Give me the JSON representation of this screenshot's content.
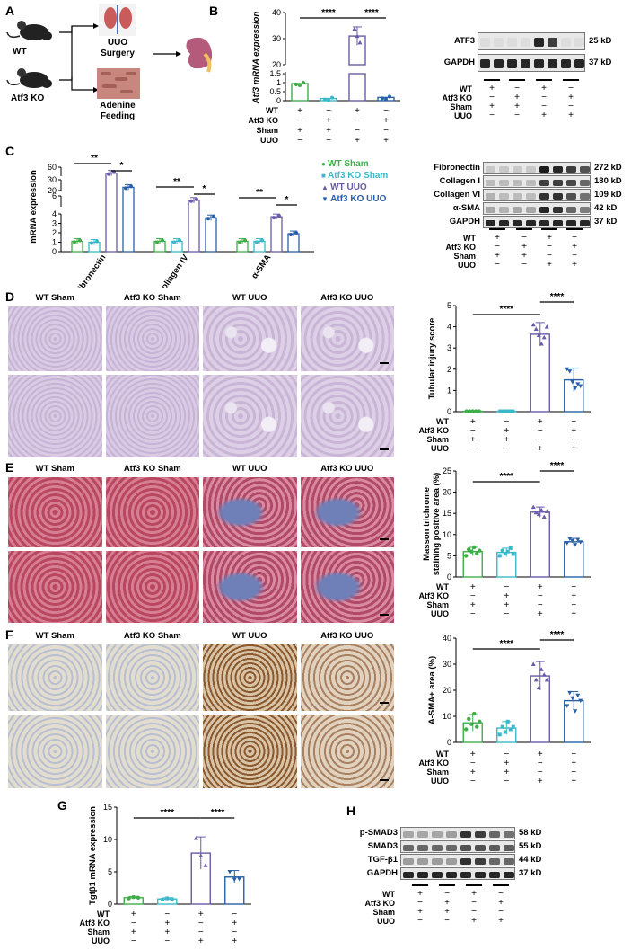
{
  "panels": {
    "A": "A",
    "B": "B",
    "C": "C",
    "D": "D",
    "E": "E",
    "F": "F",
    "G": "G",
    "H": "H"
  },
  "schematic": {
    "wt": "WT",
    "ko": "Atf3 KO",
    "surgery": "UUO Surgery",
    "feeding": "Adenine Feeding"
  },
  "cond_rows": [
    "WT",
    "Atf3 KO",
    "Sham",
    "UUO"
  ],
  "cond_signs": [
    [
      "+",
      "−",
      "+",
      "−"
    ],
    [
      "−",
      "+",
      "−",
      "+"
    ],
    [
      "+",
      "+",
      "−",
      "−"
    ],
    [
      "−",
      "−",
      "+",
      "+"
    ]
  ],
  "panel_b": {
    "ylabel": "Atf3 mRNA expression",
    "sig": [
      "****",
      "****"
    ],
    "blot_labels": [
      [
        "ATF3",
        "25 kD"
      ],
      [
        "GAPDH",
        "37 kD"
      ]
    ],
    "chart_data": {
      "type": "bar",
      "categories": [
        "WT Sham",
        "Atf3 KO Sham",
        "WT UUO",
        "Atf3 KO UUO"
      ],
      "values": [
        0.95,
        0.12,
        31,
        0.18
      ],
      "yticks": [
        "0",
        "0.5",
        "1",
        "1.5",
        "20",
        "30",
        "40"
      ],
      "ylim": [
        0,
        40
      ]
    }
  },
  "panel_c": {
    "ylabel": "mRNA expression",
    "groups": [
      "Fibronectin",
      "Collagen IV",
      "α-SMA"
    ],
    "legend": [
      "WT Sham",
      "Atf3 KO Sham",
      "WT UUO",
      "Atf3 KO UUO"
    ],
    "sig": [
      [
        "**",
        "*"
      ],
      [
        "**",
        "*"
      ],
      [
        "**",
        "*"
      ]
    ],
    "blot_labels": [
      [
        "Fibronectin",
        "272 kD"
      ],
      [
        "Collagen I",
        "180 kD"
      ],
      [
        "Collagen VI",
        "109 kD"
      ],
      [
        "α-SMA",
        "42 kD"
      ],
      [
        "GAPDH",
        "37 kD"
      ]
    ],
    "chart_data": {
      "type": "bar",
      "categories": [
        "Fibronectin",
        "Collagen IV",
        "α-SMA"
      ],
      "series": [
        {
          "name": "WT Sham",
          "values": [
            1.1,
            1.1,
            1.1
          ]
        },
        {
          "name": "Atf3 KO Sham",
          "values": [
            1.0,
            1.1,
            1.1
          ]
        },
        {
          "name": "WT UUO",
          "values": [
            40,
            5.2,
            3.7
          ]
        },
        {
          "name": "Atf3 KO UUO",
          "values": [
            23,
            3.6,
            1.9
          ]
        }
      ],
      "yticks": [
        "0",
        "1",
        "2",
        "3",
        "4",
        "6",
        "20",
        "30",
        "60"
      ]
    }
  },
  "panel_d": {
    "titles": [
      "WT Sham",
      "Atf3 KO  Sham",
      "WT UUO",
      "Atf3 KO UUO"
    ],
    "ylabel": "Tubular injury score",
    "sig": [
      "****",
      "****"
    ],
    "chart_data": {
      "type": "bar",
      "categories": [
        "WT Sham",
        "Atf3 KO Sham",
        "WT UUO",
        "Atf3 KO UUO"
      ],
      "values": [
        0.02,
        0.02,
        3.65,
        1.5
      ],
      "yticks": [
        "0",
        "1",
        "2",
        "3",
        "4",
        "5"
      ],
      "ylim": [
        0,
        5
      ]
    }
  },
  "panel_e": {
    "titles": [
      "WT Sham",
      "Atf3 KO  Sham",
      "WT UUO",
      "Atf3 KO UUO"
    ],
    "ylabel1": "Masson trichrome",
    "ylabel2": "staining positive area (%)",
    "sig": [
      "****",
      "****"
    ],
    "chart_data": {
      "type": "bar",
      "categories": [
        "WT Sham",
        "Atf3 KO Sham",
        "WT UUO",
        "Atf3 KO UUO"
      ],
      "values": [
        6.0,
        5.8,
        15.3,
        8.3
      ],
      "yticks": [
        "0",
        "5",
        "10",
        "15",
        "20",
        "25"
      ],
      "ylim": [
        0,
        25
      ]
    }
  },
  "panel_f": {
    "titles": [
      "WT Sham",
      "Atf3 KO  Sham",
      "WT UUO",
      "Atf3 KO UUO"
    ],
    "ylabel": "A-SMA+ area (%)",
    "sig": [
      "****",
      "****"
    ],
    "chart_data": {
      "type": "bar",
      "categories": [
        "WT Sham",
        "Atf3 KO Sham",
        "WT UUO",
        "Atf3 KO UUO"
      ],
      "values": [
        7.5,
        5.5,
        25.5,
        16.0
      ],
      "yticks": [
        "0",
        "10",
        "20",
        "30",
        "40"
      ],
      "ylim": [
        0,
        40
      ]
    }
  },
  "panel_g": {
    "ylabel": "Tgfβ1 mRNA expression",
    "sig": [
      "****",
      "****"
    ],
    "chart_data": {
      "type": "bar",
      "categories": [
        "WT Sham",
        "Atf3 KO Sham",
        "WT UUO",
        "Atf3 KO UUO"
      ],
      "values": [
        1.0,
        0.8,
        7.9,
        4.2
      ],
      "yticks": [
        "0",
        "5",
        "10",
        "15"
      ],
      "ylim": [
        0,
        15
      ]
    }
  },
  "panel_h": {
    "blot_labels": [
      [
        "p-SMAD3",
        "58 kD"
      ],
      [
        "SMAD3",
        "55 kD"
      ],
      [
        "TGF-β1",
        "44 kD"
      ],
      [
        "GAPDH",
        "37 kD"
      ]
    ]
  },
  "colors": {
    "wt_sham": "#3fae49",
    "ko_sham": "#3ab8c8",
    "wt_uuo": "#6b5aa8",
    "ko_uuo": "#2860a8"
  }
}
